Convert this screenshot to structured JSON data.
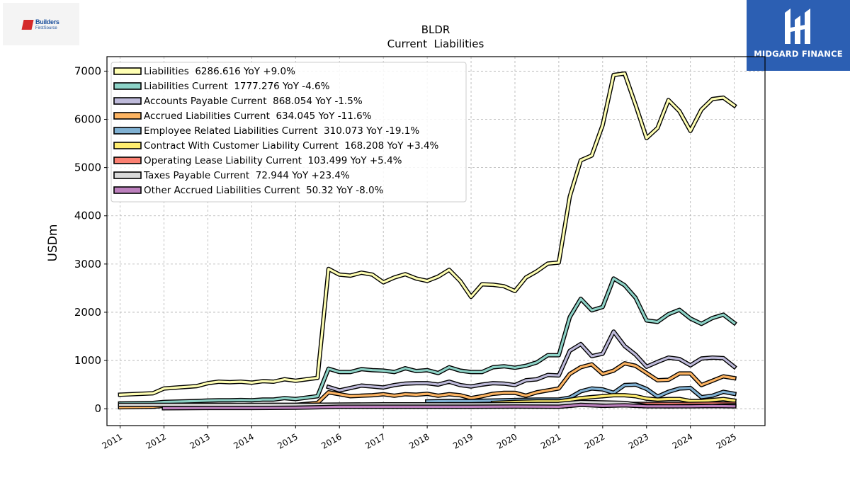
{
  "logos": {
    "left": {
      "line1": "Builders",
      "line2": "FirstSource"
    },
    "right": {
      "wordmark": "MIDGARD FINANCE"
    }
  },
  "colors": {
    "grid": "#b0b0b0",
    "frame": "#000000"
  },
  "chart_data": {
    "type": "line",
    "title": "BLDR",
    "subtitle": "Current  Liabilities",
    "ylabel": "USDm",
    "xlabel": "",
    "xlim": [
      2010.7,
      2025.7
    ],
    "ylim": [
      -350,
      7300
    ],
    "yticks": [
      0,
      1000,
      2000,
      3000,
      4000,
      5000,
      6000,
      7000
    ],
    "xticks": [
      2011,
      2012,
      2013,
      2014,
      2015,
      2016,
      2017,
      2018,
      2019,
      2020,
      2021,
      2022,
      2023,
      2024,
      2025
    ],
    "grid": true,
    "legend_position": "top-left",
    "series": [
      {
        "name": "Liabilities",
        "legend": "Liabilities  6286.616 YoY +9.0%",
        "color": "#ffffb3",
        "x": [
          2011.0,
          2011.75,
          2012.0,
          2012.75,
          2013.0,
          2013.25,
          2013.5,
          2013.75,
          2014.0,
          2014.25,
          2014.5,
          2014.75,
          2015.0,
          2015.25,
          2015.5,
          2015.75,
          2016.0,
          2016.25,
          2016.5,
          2016.75,
          2017.0,
          2017.25,
          2017.5,
          2017.75,
          2018.0,
          2018.25,
          2018.5,
          2018.75,
          2019.0,
          2019.25,
          2019.5,
          2019.75,
          2020.0,
          2020.25,
          2020.5,
          2020.75,
          2021.0,
          2021.25,
          2021.5,
          2021.75,
          2022.0,
          2022.25,
          2022.5,
          2022.75,
          2023.0,
          2023.25,
          2023.5,
          2023.75,
          2024.0,
          2024.25,
          2024.5,
          2024.75,
          2025.0
        ],
        "y": [
          290,
          320,
          420,
          470,
          530,
          560,
          550,
          560,
          540,
          570,
          560,
          610,
          580,
          610,
          640,
          2900,
          2780,
          2760,
          2820,
          2780,
          2620,
          2720,
          2790,
          2700,
          2650,
          2740,
          2880,
          2650,
          2320,
          2580,
          2570,
          2540,
          2440,
          2720,
          2850,
          3010,
          3030,
          4400,
          5150,
          5250,
          5880,
          6920,
          6950,
          6300,
          5610,
          5820,
          6400,
          6170,
          5760,
          6200,
          6420,
          6450,
          6287
        ]
      },
      {
        "name": "Liabilities Current",
        "legend": "Liabilities Current  1777.276 YoY -4.6%",
        "color": "#8dd3c7",
        "x": [
          2011.0,
          2011.75,
          2012.0,
          2012.75,
          2013.0,
          2013.25,
          2013.5,
          2013.75,
          2014.0,
          2014.25,
          2014.5,
          2014.75,
          2015.0,
          2015.25,
          2015.5,
          2015.75,
          2016.0,
          2016.25,
          2016.5,
          2016.75,
          2017.0,
          2017.25,
          2017.5,
          2017.75,
          2018.0,
          2018.25,
          2018.5,
          2018.75,
          2019.0,
          2019.25,
          2019.5,
          2019.75,
          2020.0,
          2020.25,
          2020.5,
          2020.75,
          2021.0,
          2021.25,
          2021.5,
          2021.75,
          2022.0,
          2022.25,
          2022.5,
          2022.75,
          2023.0,
          2023.25,
          2023.5,
          2023.75,
          2024.0,
          2024.25,
          2024.5,
          2024.75,
          2025.0
        ],
        "y": [
          110,
          120,
          140,
          160,
          170,
          175,
          175,
          180,
          175,
          190,
          190,
          220,
          200,
          230,
          260,
          830,
          760,
          760,
          820,
          800,
          790,
          760,
          840,
          780,
          800,
          740,
          860,
          790,
          760,
          760,
          860,
          880,
          850,
          890,
          960,
          1110,
          1110,
          1900,
          2280,
          2040,
          2110,
          2700,
          2560,
          2300,
          1830,
          1800,
          1960,
          2050,
          1870,
          1760,
          1880,
          1950,
          1777
        ]
      },
      {
        "name": "Accounts Payable Current",
        "legend": "Accounts Payable Current  868.054 YoY -1.5%",
        "color": "#bebada",
        "x": [
          2015.75,
          2016.0,
          2016.25,
          2016.5,
          2016.75,
          2017.0,
          2017.25,
          2017.5,
          2017.75,
          2018.0,
          2018.25,
          2018.5,
          2018.75,
          2019.0,
          2019.25,
          2019.5,
          2019.75,
          2020.0,
          2020.25,
          2020.5,
          2020.75,
          2021.0,
          2021.25,
          2021.5,
          2021.75,
          2022.0,
          2022.25,
          2022.5,
          2022.75,
          2023.0,
          2023.25,
          2023.5,
          2023.75,
          2024.0,
          2024.25,
          2024.5,
          2024.75,
          2025.0
        ],
        "y": [
          450,
          380,
          430,
          480,
          460,
          440,
          490,
          520,
          530,
          530,
          500,
          560,
          490,
          460,
          500,
          530,
          520,
          490,
          590,
          610,
          700,
          690,
          1200,
          1340,
          1090,
          1140,
          1600,
          1300,
          1120,
          870,
          970,
          1060,
          1030,
          900,
          1040,
          1060,
          1050,
          868
        ]
      },
      {
        "name": "Accrued Liabilities Current",
        "legend": "Accrued Liabilities Current  634.045 YoY -11.6%",
        "color": "#fdb462",
        "x": [
          2011.0,
          2011.75,
          2012.0,
          2012.75,
          2013.0,
          2013.5,
          2014.0,
          2014.5,
          2015.0,
          2015.25,
          2015.5,
          2015.75,
          2016.0,
          2016.25,
          2016.5,
          2016.75,
          2017.0,
          2017.25,
          2017.5,
          2017.75,
          2018.0,
          2018.25,
          2018.5,
          2018.75,
          2019.0,
          2019.25,
          2019.5,
          2019.75,
          2020.0,
          2020.25,
          2020.5,
          2020.75,
          2021.0,
          2021.25,
          2021.5,
          2021.75,
          2022.0,
          2022.25,
          2022.5,
          2022.75,
          2023.0,
          2023.25,
          2023.5,
          2023.75,
          2024.0,
          2024.25,
          2024.5,
          2024.75,
          2025.0
        ],
        "y": [
          30,
          40,
          60,
          65,
          70,
          70,
          75,
          80,
          80,
          100,
          120,
          340,
          300,
          260,
          270,
          280,
          300,
          270,
          300,
          290,
          310,
          270,
          300,
          280,
          220,
          260,
          310,
          330,
          330,
          270,
          340,
          380,
          420,
          720,
          860,
          920,
          720,
          790,
          940,
          890,
          740,
          590,
          600,
          730,
          730,
          490,
          580,
          670,
          634
        ]
      },
      {
        "name": "Employee Related Liabilities Current",
        "legend": "Employee Related Liabilities Current  310.073 YoY -19.1%",
        "color": "#80b1d3",
        "x": [
          2018.0,
          2018.5,
          2019.0,
          2019.5,
          2020.0,
          2020.5,
          2021.0,
          2021.25,
          2021.5,
          2021.75,
          2022.0,
          2022.25,
          2022.5,
          2022.75,
          2023.0,
          2023.25,
          2023.5,
          2023.75,
          2024.0,
          2024.25,
          2024.5,
          2024.75,
          2025.0
        ],
        "y": [
          150,
          160,
          160,
          170,
          180,
          190,
          190,
          230,
          360,
          420,
          400,
          330,
          490,
          500,
          410,
          250,
          350,
          420,
          430,
          240,
          270,
          350,
          310
        ]
      },
      {
        "name": "Contract With Customer Liability Current",
        "legend": "Contract With Customer Liability Current  168.208 YoY +3.4%",
        "color": "#ffed6f",
        "x": [
          2019.5,
          2020.0,
          2020.5,
          2021.0,
          2021.5,
          2021.75,
          2022.0,
          2022.25,
          2022.5,
          2022.75,
          2023.0,
          2023.25,
          2023.5,
          2023.75,
          2024.0,
          2024.25,
          2024.5,
          2024.75,
          2025.0
        ],
        "y": [
          120,
          140,
          150,
          150,
          220,
          240,
          260,
          280,
          280,
          260,
          210,
          190,
          200,
          200,
          160,
          160,
          180,
          200,
          168
        ]
      },
      {
        "name": "Operating Lease Liability Current",
        "legend": "Operating Lease Liability Current  103.499 YoY +5.4%",
        "color": "#fb8072",
        "x": [
          2019.0,
          2019.5,
          2020.0,
          2020.5,
          2021.0,
          2021.5,
          2022.0,
          2022.5,
          2023.0,
          2023.5,
          2024.0,
          2024.5,
          2025.0
        ],
        "y": [
          70,
          75,
          80,
          80,
          85,
          90,
          95,
          100,
          100,
          100,
          100,
          105,
          103
        ]
      },
      {
        "name": "Taxes Payable Current",
        "legend": "Taxes Payable Current  72.944 YoY +23.4%",
        "color": "#d9d9d9",
        "x": [
          2011.0,
          2013.0,
          2015.0,
          2017.0,
          2019.0,
          2020.0,
          2021.0,
          2021.5,
          2022.0,
          2022.5,
          2023.0,
          2023.5,
          2024.0,
          2024.5,
          2025.0
        ],
        "y": [
          80,
          80,
          80,
          90,
          90,
          95,
          100,
          140,
          130,
          120,
          60,
          50,
          60,
          60,
          73
        ]
      },
      {
        "name": "Other Accrued Liabilities Current",
        "legend": "Other Accrued Liabilities Current  50.32 YoY -8.0%",
        "color": "#bc80bd",
        "x": [
          2012.0,
          2013.0,
          2014.0,
          2015.0,
          2015.5,
          2016.0,
          2017.0,
          2018.0,
          2019.0,
          2020.0,
          2021.0,
          2021.25,
          2021.5,
          2021.75,
          2022.0,
          2022.5,
          2023.0,
          2023.5,
          2024.0,
          2024.5,
          2025.0
        ],
        "y": [
          10,
          15,
          15,
          20,
          30,
          40,
          40,
          40,
          40,
          45,
          40,
          60,
          80,
          70,
          60,
          70,
          50,
          50,
          50,
          55,
          50
        ]
      }
    ]
  }
}
